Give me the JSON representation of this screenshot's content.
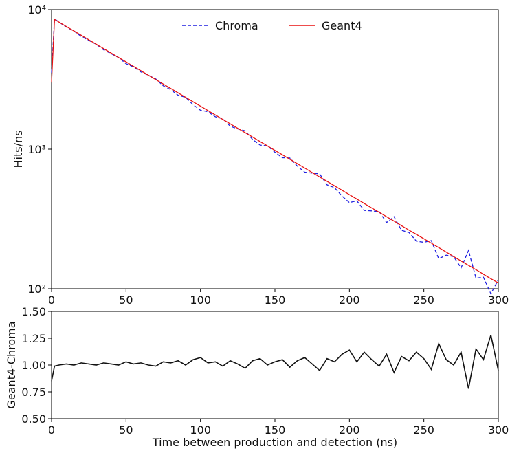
{
  "chart_data": [
    {
      "type": "line",
      "ylabel": "Hits/ns",
      "log_y": true,
      "legend": "upper center",
      "x": [
        0,
        2,
        5,
        10,
        15,
        20,
        25,
        30,
        35,
        40,
        45,
        50,
        55,
        60,
        65,
        70,
        75,
        80,
        85,
        90,
        95,
        100,
        105,
        110,
        115,
        120,
        125,
        130,
        135,
        140,
        145,
        150,
        155,
        160,
        165,
        170,
        175,
        180,
        185,
        190,
        195,
        200,
        205,
        210,
        215,
        220,
        225,
        230,
        235,
        240,
        245,
        250,
        255,
        260,
        265,
        270,
        275,
        280,
        285,
        290,
        295,
        300
      ],
      "series": [
        {
          "name": "Chroma",
          "color": "#1f1fe0",
          "style": "dashed",
          "values": [
            3529,
            8586,
            8136,
            7488,
            7031,
            6408,
            6016,
            5648,
            5147,
            4833,
            4537,
            4095,
            3882,
            3574,
            3388,
            3182,
            2843,
            2669,
            2433,
            2352,
            2083,
            1900,
            1853,
            1706,
            1650,
            1460,
            1397,
            1353,
            1173,
            1070,
            1054,
            951,
            868,
            864,
            757,
            684,
            673,
            665,
            555,
            530,
            462,
            414,
            426,
            364,
            361,
            357,
            298,
            328,
            262,
            253,
            219,
            215,
            221,
            164,
            174,
            170,
            141,
            188,
            119,
            121,
            92,
            116
          ]
        },
        {
          "name": "Geant4",
          "color": "#e81010",
          "style": "solid",
          "values": [
            3000,
            8500,
            8136,
            7563,
            7031,
            6536,
            6076,
            5648,
            5250,
            4881,
            4537,
            4218,
            3921,
            3645,
            3388,
            3150,
            2928,
            2722,
            2530,
            2352,
            2187,
            2033,
            1890,
            1757,
            1633,
            1518,
            1411,
            1312,
            1220,
            1134,
            1054,
            980,
            911,
            847,
            787,
            732,
            680,
            632,
            588,
            546,
            508,
            472,
            439,
            408,
            379,
            353,
            328,
            305,
            283,
            263,
            245,
            228,
            212,
            197,
            183,
            170,
            158,
            147,
            137,
            127,
            118,
            110
          ]
        }
      ],
      "xlim": [
        0,
        300
      ],
      "xticks": [
        0,
        50,
        100,
        150,
        200,
        250,
        300
      ],
      "ylim": [
        100,
        10000
      ],
      "yticks": [
        {
          "value": 100,
          "label": "10²"
        },
        {
          "value": 1000,
          "label": "10³"
        },
        {
          "value": 10000,
          "label": "10⁴"
        }
      ]
    },
    {
      "type": "line",
      "ylabel": "Geant4-Chroma",
      "xlabel": "Time between production and detection (ns)",
      "color": "#111111",
      "x": [
        0,
        2,
        5,
        10,
        15,
        20,
        25,
        30,
        35,
        40,
        45,
        50,
        55,
        60,
        65,
        70,
        75,
        80,
        85,
        90,
        95,
        100,
        105,
        110,
        115,
        120,
        125,
        130,
        135,
        140,
        145,
        150,
        155,
        160,
        165,
        170,
        175,
        180,
        185,
        190,
        195,
        200,
        205,
        210,
        215,
        220,
        225,
        230,
        235,
        240,
        245,
        250,
        255,
        260,
        265,
        270,
        275,
        280,
        285,
        290,
        295,
        300
      ],
      "values": [
        0.85,
        0.99,
        1.0,
        1.01,
        1.0,
        1.02,
        1.01,
        1.0,
        1.02,
        1.01,
        1.0,
        1.03,
        1.01,
        1.02,
        1.0,
        0.99,
        1.03,
        1.02,
        1.04,
        1.0,
        1.05,
        1.07,
        1.02,
        1.03,
        0.99,
        1.04,
        1.01,
        0.97,
        1.04,
        1.06,
        1.0,
        1.03,
        1.05,
        0.98,
        1.04,
        1.07,
        1.01,
        0.95,
        1.06,
        1.03,
        1.1,
        1.14,
        1.03,
        1.12,
        1.05,
        0.99,
        1.1,
        0.93,
        1.08,
        1.04,
        1.12,
        1.06,
        0.96,
        1.2,
        1.05,
        1.0,
        1.12,
        0.78,
        1.15,
        1.05,
        1.28,
        0.95
      ],
      "xlim": [
        0,
        300
      ],
      "xticks": [
        0,
        50,
        100,
        150,
        200,
        250,
        300
      ],
      "ylim": [
        0.5,
        1.5
      ],
      "yticks": [
        {
          "value": 0.5,
          "label": "0.50"
        },
        {
          "value": 0.75,
          "label": "0.75"
        },
        {
          "value": 1,
          "label": "1.00"
        },
        {
          "value": 1.25,
          "label": "1.25"
        },
        {
          "value": 1.5,
          "label": "1.50"
        }
      ]
    }
  ]
}
